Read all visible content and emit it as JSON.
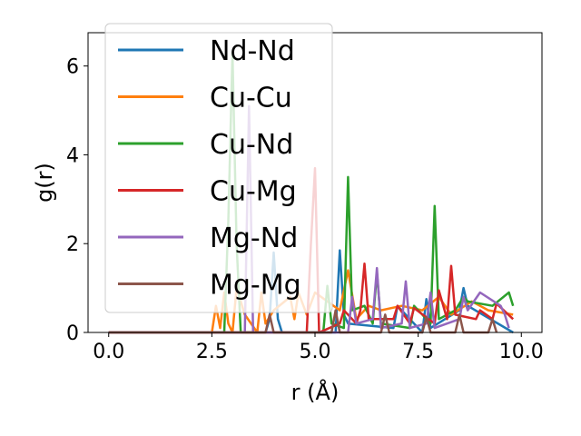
{
  "chart_data": {
    "type": "line",
    "title": "",
    "xlabel": "r (Å)",
    "ylabel": "g(r)",
    "xlim": [
      -0.5,
      10.5
    ],
    "ylim": [
      0,
      6.75
    ],
    "xticks": [
      "0.0",
      "2.5",
      "5.0",
      "7.5",
      "10.0"
    ],
    "xtick_values": [
      0,
      2.5,
      5,
      7.5,
      10
    ],
    "yticks": [
      "0",
      "2",
      "4",
      "6"
    ],
    "ytick_values": [
      0,
      2,
      4,
      6
    ],
    "grid": false,
    "legend_position": "upper-left",
    "series": [
      {
        "name": "Nd-Nd",
        "color": "#1f77b4",
        "x": [
          0,
          3.8,
          3.9,
          4.0,
          4.1,
          4.2,
          5.5,
          5.6,
          5.7,
          5.8,
          6.9,
          7.0,
          7.6,
          7.7,
          7.8,
          8.5,
          8.6,
          8.7,
          9.8
        ],
        "y": [
          0,
          0,
          0.3,
          1.8,
          0.3,
          0,
          0,
          1.85,
          0.4,
          0.2,
          0.1,
          0.6,
          0,
          0.75,
          0.1,
          0.5,
          1.0,
          0.6,
          0
        ]
      },
      {
        "name": "Cu-Cu",
        "color": "#ff7f0e",
        "x": [
          0,
          2.5,
          2.6,
          2.7,
          2.8,
          2.9,
          3.0,
          3.1,
          3.3,
          3.6,
          3.7,
          3.8,
          4.0,
          4.4,
          4.5,
          4.6,
          4.8,
          5.0,
          5.6,
          5.8,
          6.0,
          6.3,
          6.6,
          7.1,
          7.6,
          8.0,
          8.3,
          8.8,
          9.2,
          9.8
        ],
        "y": [
          0,
          0,
          0.6,
          0.1,
          0.9,
          0.2,
          0,
          1.0,
          0.4,
          0,
          0.9,
          0.2,
          0.5,
          0.8,
          0.3,
          0.9,
          0.4,
          0.9,
          0.5,
          1.4,
          0.3,
          0.6,
          0.5,
          0.6,
          0.5,
          0.8,
          0.4,
          0.7,
          0.5,
          0.4
        ]
      },
      {
        "name": "Cu-Nd",
        "color": "#2ca02c",
        "x": [
          0,
          2.8,
          2.9,
          3.0,
          3.1,
          3.2,
          5.2,
          5.3,
          5.4,
          5.7,
          5.8,
          5.9,
          6.2,
          6.4,
          6.5,
          6.6,
          7.3,
          7.4,
          7.8,
          7.9,
          8.0,
          8.4,
          8.6,
          8.7,
          9.3,
          9.7,
          9.8
        ],
        "y": [
          0,
          0,
          2.5,
          6.3,
          2.0,
          0,
          0,
          1.05,
          0.2,
          0.1,
          3.5,
          0.5,
          0.6,
          0.2,
          1.35,
          0.2,
          0.1,
          0.6,
          0.2,
          2.85,
          0.3,
          0.5,
          0.8,
          0.7,
          0.6,
          0.9,
          0.6
        ]
      },
      {
        "name": "Cu-Mg",
        "color": "#d62728",
        "x": [
          0,
          4.8,
          4.9,
          5.0,
          5.1,
          5.6,
          5.7,
          6.0,
          6.1,
          6.2,
          6.3,
          6.9,
          7.0,
          7.3,
          7.4,
          7.9,
          8.0,
          8.2,
          8.3,
          8.4,
          8.9,
          9.0,
          9.3,
          9.4,
          9.8
        ],
        "y": [
          0,
          0,
          2.0,
          3.7,
          0,
          0.2,
          0.5,
          0.2,
          0.5,
          1.55,
          0.3,
          0.3,
          0.6,
          0.2,
          0.55,
          0.2,
          0.95,
          0.3,
          1.5,
          0.4,
          0.3,
          0.5,
          0.3,
          0.65,
          0.3
        ]
      },
      {
        "name": "Mg-Nd",
        "color": "#9467bd",
        "x": [
          0,
          3.3,
          3.4,
          3.5,
          5.8,
          5.9,
          6.0,
          6.4,
          6.5,
          6.6,
          7.1,
          7.2,
          7.3,
          7.7,
          7.8,
          7.9,
          8.5,
          8.6,
          8.7,
          9.0,
          9.5,
          9.6,
          9.7
        ],
        "y": [
          0,
          0,
          5.1,
          0,
          0,
          0.8,
          0.2,
          0.3,
          1.45,
          0.1,
          0.2,
          1.15,
          0.1,
          0.2,
          0.9,
          0.1,
          0.3,
          0.8,
          0.5,
          0.9,
          0.6,
          0.4,
          0.1
        ]
      },
      {
        "name": "Mg-Mg",
        "color": "#8c564b",
        "x": [
          0,
          3.8,
          3.9,
          4.0,
          5.4,
          5.5,
          5.6,
          6.6,
          6.7,
          6.8,
          7.6,
          7.7,
          7.8,
          8.4,
          8.5,
          8.6,
          9.2,
          9.3,
          9.4
        ],
        "y": [
          0,
          0,
          0.4,
          0,
          0,
          0.5,
          0,
          0,
          0.4,
          0,
          0,
          0.35,
          0,
          0,
          0.4,
          0,
          0,
          0.3,
          0
        ]
      }
    ]
  }
}
